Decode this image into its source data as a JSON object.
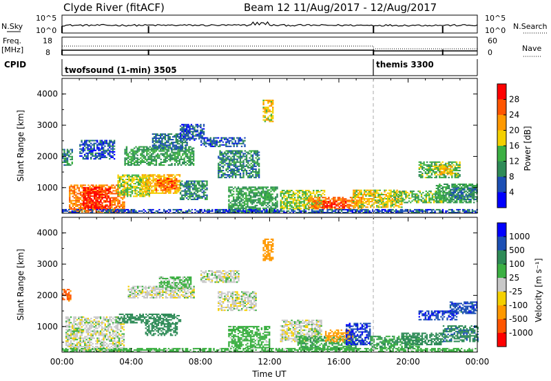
{
  "header": {
    "station": "Clyde River (fitACF)",
    "beam_info": "Beam 12 11/Aug/2017 - 12/Aug/2017"
  },
  "strips": {
    "nsky_label": "N.Sky",
    "nsky_ticks": [
      "10^5",
      "10^0"
    ],
    "nsearch_label": "N.Search",
    "nsearch_ticks": [
      "10^5",
      "10^0"
    ],
    "freq_label": "Freq.",
    "freq_unit": "[MHz]",
    "freq_ticks": [
      "18",
      "8"
    ],
    "nave_label": "Nave",
    "nave_ticks": [
      "60",
      "0"
    ],
    "cpid_label": "CPID",
    "cpid_segments": [
      {
        "text": "twofsound (1-min) 3505",
        "start_hour": 0
      },
      {
        "text": "themis 3300",
        "start_hour": 18
      }
    ]
  },
  "chart_data": [
    {
      "type": "heatmap",
      "panel": "power",
      "x_unit": "hours UT from 00:00 11/Aug/2017",
      "xlim": [
        0,
        24
      ],
      "ylabel": "Slant Range [km]",
      "ylim": [
        180,
        4500
      ],
      "y_ticks": [
        "1000",
        "2000",
        "3000",
        "4000"
      ],
      "colorbar_label": "Power [dB]",
      "colorbar_ticks": [
        "4",
        "8",
        "12",
        "16",
        "20",
        "24",
        "28"
      ],
      "colors": [
        "#0000ff",
        "#1c4fb4",
        "#2e8b57",
        "#3cb043",
        "#f4d000",
        "#ff9900",
        "#ff5500",
        "#ff0000"
      ],
      "regions": [
        {
          "t": [
            0.4,
            3.6
          ],
          "r": [
            200,
            1100
          ],
          "v": 24
        },
        {
          "t": [
            1.2,
            2.8
          ],
          "r": [
            300,
            1000
          ],
          "v": 30
        },
        {
          "t": [
            3.2,
            5.0
          ],
          "r": [
            700,
            1400
          ],
          "v": 16
        },
        {
          "t": [
            4.6,
            6.8
          ],
          "r": [
            800,
            1400
          ],
          "v": 20
        },
        {
          "t": [
            5.4,
            6.6
          ],
          "r": [
            900,
            1300
          ],
          "v": 26
        },
        {
          "t": [
            6.8,
            8.4
          ],
          "r": [
            600,
            1200
          ],
          "v": 10
        },
        {
          "t": [
            3.6,
            7.6
          ],
          "r": [
            1700,
            2300
          ],
          "v": 12
        },
        {
          "t": [
            5.2,
            7.2
          ],
          "r": [
            2200,
            2700
          ],
          "v": 8
        },
        {
          "t": [
            6.8,
            8.2
          ],
          "r": [
            2500,
            3000
          ],
          "v": 6
        },
        {
          "t": [
            1.0,
            3.0
          ],
          "r": [
            1900,
            2500
          ],
          "v": 6
        },
        {
          "t": [
            0.0,
            0.6
          ],
          "r": [
            1700,
            2200
          ],
          "v": 10
        },
        {
          "t": [
            8.0,
            10.6
          ],
          "r": [
            2300,
            2600
          ],
          "v": 6
        },
        {
          "t": [
            9.0,
            11.4
          ],
          "r": [
            1300,
            2200
          ],
          "v": 10
        },
        {
          "t": [
            11.6,
            12.2
          ],
          "r": [
            3100,
            3800
          ],
          "v": 18
        },
        {
          "t": [
            9.6,
            12.4
          ],
          "r": [
            180,
            1000
          ],
          "v": 12
        },
        {
          "t": [
            12.6,
            15.2
          ],
          "r": [
            300,
            900
          ],
          "v": 16
        },
        {
          "t": [
            14.2,
            17.4
          ],
          "r": [
            300,
            700
          ],
          "v": 24
        },
        {
          "t": [
            15.0,
            16.4
          ],
          "r": [
            350,
            550
          ],
          "v": 30
        },
        {
          "t": [
            16.8,
            19.6
          ],
          "r": [
            350,
            900
          ],
          "v": 18
        },
        {
          "t": [
            19.2,
            22.0
          ],
          "r": [
            500,
            900
          ],
          "v": 14
        },
        {
          "t": [
            21.6,
            24.0
          ],
          "r": [
            500,
            1100
          ],
          "v": 12
        },
        {
          "t": [
            20.6,
            23.0
          ],
          "r": [
            1300,
            1800
          ],
          "v": 14
        },
        {
          "t": [
            21.8,
            22.6
          ],
          "r": [
            1400,
            1700
          ],
          "v": 20
        },
        {
          "t": [
            22.4,
            24.0
          ],
          "r": [
            600,
            1000
          ],
          "v": 8
        },
        {
          "t": [
            0.0,
            24.0
          ],
          "r": [
            180,
            300
          ],
          "v": 6
        }
      ]
    },
    {
      "type": "heatmap",
      "panel": "velocity",
      "x_unit": "hours UT from 00:00 11/Aug/2017",
      "xlim": [
        0,
        24
      ],
      "xlabel": "Time UT",
      "x_ticks": [
        "00:00",
        "04:00",
        "08:00",
        "12:00",
        "16:00",
        "20:00",
        "00:00"
      ],
      "ylabel": "Slant Range [km]",
      "ylim": [
        180,
        4500
      ],
      "y_ticks": [
        "1000",
        "2000",
        "3000",
        "4000"
      ],
      "colorbar_label": "Velocity [m s⁻¹]",
      "colorbar_ticks": [
        "1000",
        "500",
        "100",
        "25",
        "-25",
        "-100",
        "-500",
        "-1000"
      ],
      "colors": [
        "#ff0000",
        "#ff5500",
        "#ff9900",
        "#f4d000",
        "#c8c8c8",
        "#3cb043",
        "#2e8b57",
        "#1c4fb4",
        "#0000ff"
      ],
      "regions": [
        {
          "t": [
            0.2,
            3.6
          ],
          "r": [
            200,
            1300
          ],
          "v": 0
        },
        {
          "t": [
            0.0,
            0.5
          ],
          "r": [
            1800,
            2200
          ],
          "v": -700
        },
        {
          "t": [
            3.2,
            6.8
          ],
          "r": [
            1100,
            1400
          ],
          "v": 300
        },
        {
          "t": [
            4.8,
            6.6
          ],
          "r": [
            700,
            1100
          ],
          "v": 200
        },
        {
          "t": [
            3.8,
            7.6
          ],
          "r": [
            1900,
            2300
          ],
          "v": 0
        },
        {
          "t": [
            5.6,
            7.4
          ],
          "r": [
            2200,
            2600
          ],
          "v": 50
        },
        {
          "t": [
            8.0,
            10.2
          ],
          "r": [
            2400,
            2800
          ],
          "v": 0
        },
        {
          "t": [
            9.0,
            11.2
          ],
          "r": [
            1500,
            2100
          ],
          "v": 0
        },
        {
          "t": [
            11.6,
            12.2
          ],
          "r": [
            3100,
            3800
          ],
          "v": -300
        },
        {
          "t": [
            9.6,
            12.0
          ],
          "r": [
            300,
            1000
          ],
          "v": 60
        },
        {
          "t": [
            12.6,
            15.0
          ],
          "r": [
            500,
            1200
          ],
          "v": 0
        },
        {
          "t": [
            13.6,
            17.0
          ],
          "r": [
            250,
            700
          ],
          "v": 80
        },
        {
          "t": [
            15.2,
            16.8
          ],
          "r": [
            500,
            900
          ],
          "v": -150
        },
        {
          "t": [
            16.4,
            17.8
          ],
          "r": [
            400,
            1100
          ],
          "v": 900
        },
        {
          "t": [
            17.8,
            20.6
          ],
          "r": [
            300,
            700
          ],
          "v": 100
        },
        {
          "t": [
            19.6,
            22.0
          ],
          "r": [
            400,
            800
          ],
          "v": 300
        },
        {
          "t": [
            20.6,
            22.8
          ],
          "r": [
            1200,
            1500
          ],
          "v": 900
        },
        {
          "t": [
            22.4,
            24.0
          ],
          "r": [
            1400,
            1800
          ],
          "v": 800
        },
        {
          "t": [
            22.0,
            24.0
          ],
          "r": [
            500,
            1000
          ],
          "v": 400
        },
        {
          "t": [
            0.0,
            24.0
          ],
          "r": [
            180,
            300
          ],
          "v": 60
        }
      ]
    }
  ]
}
